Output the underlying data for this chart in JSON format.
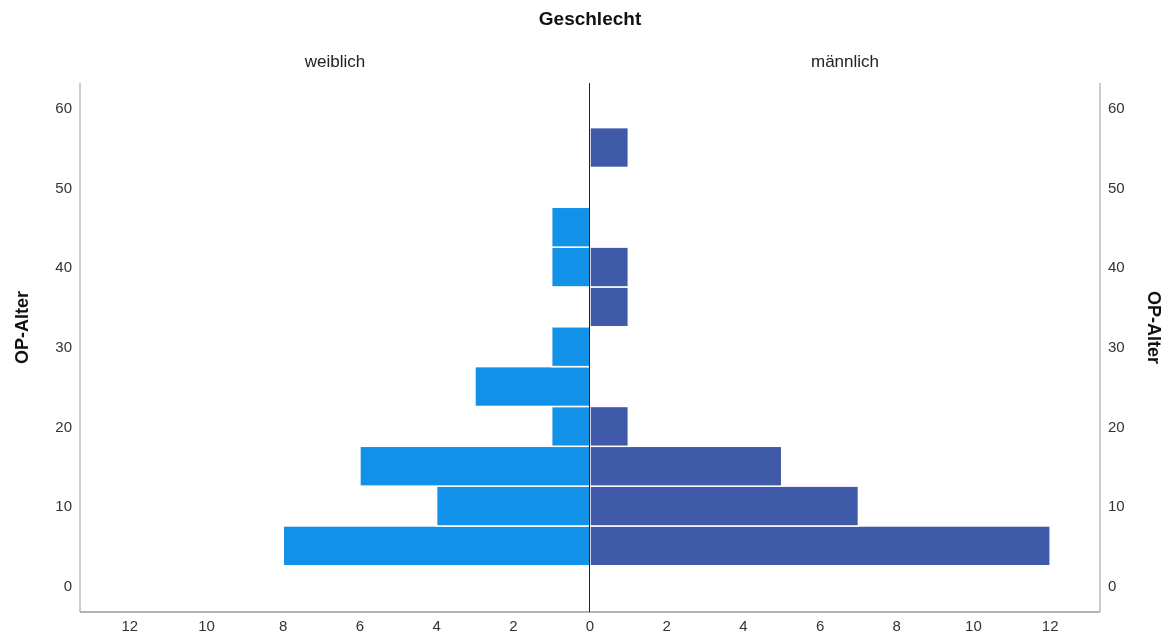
{
  "chart_data": [
    {
      "type": "histogram",
      "title": "Geschlecht",
      "subtitle": "weiblich",
      "orientation": "horizontal",
      "ylabel": "OP-Alter",
      "color": "#1191e8",
      "bins": [
        2.5,
        7.5,
        12.5,
        17.5,
        22.5,
        27.5,
        32.5,
        37.5,
        42.5,
        47.5,
        52.5,
        57.5
      ],
      "values": [
        8,
        4,
        6,
        1,
        3,
        1,
        0,
        1,
        1,
        0,
        0
      ],
      "xlim": [
        13.3,
        0
      ],
      "xticks": [
        12,
        10,
        8,
        6,
        4,
        2,
        0
      ],
      "ylim": [
        -3.3,
        63.1
      ],
      "yticks": [
        0,
        10,
        20,
        30,
        40,
        50,
        60
      ]
    },
    {
      "type": "histogram",
      "subtitle": "männlich",
      "orientation": "horizontal",
      "ylabel": "OP-Alter",
      "color": "#3f5aa9",
      "bins": [
        2.5,
        7.5,
        12.5,
        17.5,
        22.5,
        27.5,
        32.5,
        37.5,
        42.5,
        47.5,
        52.5,
        57.5
      ],
      "values": [
        12,
        7,
        5,
        1,
        0,
        0,
        1,
        1,
        0,
        0,
        1
      ],
      "xlim": [
        0,
        13.3
      ],
      "xticks": [
        2,
        4,
        6,
        8,
        10,
        12
      ],
      "ylim": [
        -3.3,
        63.1
      ],
      "yticks": [
        0,
        10,
        20,
        30,
        40,
        50,
        60
      ]
    }
  ]
}
